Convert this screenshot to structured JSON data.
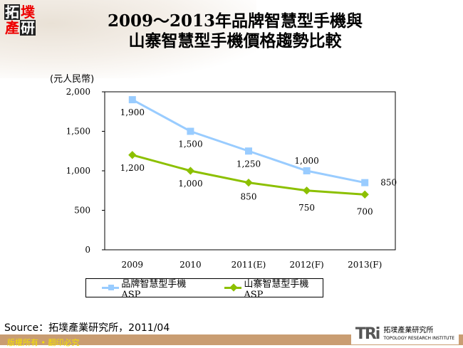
{
  "logo": {
    "chars": [
      "拓",
      "墣",
      "產",
      "研"
    ]
  },
  "title_line1": "2009～2013年品牌智慧型手機與",
  "title_line2": "山寨智慧型手機價格趨勢比較",
  "chart_data": {
    "type": "line",
    "ylabel": "(元人民幣)",
    "categories": [
      "2009",
      "2010",
      "2011(E)",
      "2012(F)",
      "2013(F)"
    ],
    "ylim": [
      0,
      2000
    ],
    "yticks": [
      0,
      500,
      1000,
      1500,
      2000
    ],
    "ytick_labels": [
      "0",
      "500",
      "1,000",
      "1,500",
      "2,000"
    ],
    "grid": false,
    "legend_position": "bottom",
    "series": [
      {
        "name": "品牌智慧型手機ASP",
        "color": "#99ccff",
        "marker": "square",
        "values": [
          1900,
          1500,
          1250,
          1000,
          850
        ],
        "labels": [
          "1,900",
          "1,500",
          "1,250",
          "1,000",
          "850"
        ]
      },
      {
        "name": "山寨智慧型手機ASP",
        "color": "#8cc000",
        "marker": "diamond",
        "values": [
          1200,
          1000,
          850,
          750,
          700
        ],
        "labels": [
          "1,200",
          "1,000",
          "850",
          "750",
          "700"
        ]
      }
    ]
  },
  "source": "Source：拓墣產業研究所，2011/04",
  "footer": "版權所有 • 翻印必究",
  "brand": {
    "mark": "TRi",
    "name": "拓墣產業研究所",
    "sub": "TOPOLOGY RESEARCH INSTITUTE"
  }
}
